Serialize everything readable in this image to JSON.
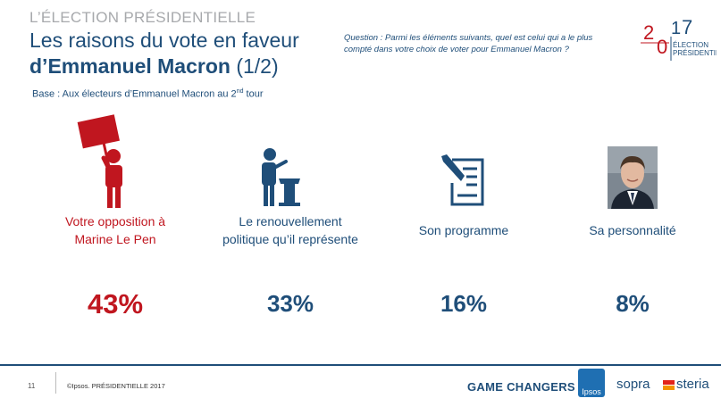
{
  "header": {
    "kicker": "L’ÉLECTION PRÉSIDENTIELLE",
    "title_line1": "Les raisons du vote en faveur",
    "title_line2_bold": "d’Emmanuel Macron",
    "title_line2_rest": " (1/2)",
    "base_prefix": "Base :  Aux électeurs d’Emmanuel Macron au 2",
    "base_sup": "nd",
    "base_suffix": " tour",
    "question": "Question : Parmi les éléments suivants, quel est celui qui a le plus compté dans votre choix de voter pour Emmanuel Macron ?"
  },
  "logo": {
    "year_a": "2",
    "year_b": "0",
    "year_c": "1",
    "year_d": "7",
    "line1": "ÉLECTION",
    "line2": "PRÉSIDENTIELLE"
  },
  "chart_data": {
    "type": "table",
    "categories": [
      "Votre opposition à Marine Le Pen",
      "Le renouvellement politique qu’il représente",
      "Son programme",
      "Sa personnalité"
    ],
    "values": [
      43,
      33,
      16,
      8
    ],
    "value_labels": [
      "43%",
      "33%",
      "16%",
      "8%"
    ],
    "label_lines": [
      [
        "Votre opposition à",
        "Marine Le Pen"
      ],
      [
        "Le renouvellement",
        "politique qu’il représente"
      ],
      [
        "Son programme"
      ],
      [
        "Sa personnalité"
      ]
    ],
    "icons": [
      "protester-sign-icon",
      "speaker-podium-icon",
      "document-pen-icon",
      "portrait-icon"
    ],
    "highlight_color": "#c0161f",
    "default_color": "#1f4e79"
  },
  "footer": {
    "page_number": "11",
    "copyright": "©Ipsos.  PRÉSIDENTIELLE 2017",
    "game_changers": "GAME CHANGERS",
    "ipsos": "Ipsos",
    "sopra": "sopra",
    "steria": "steria"
  }
}
